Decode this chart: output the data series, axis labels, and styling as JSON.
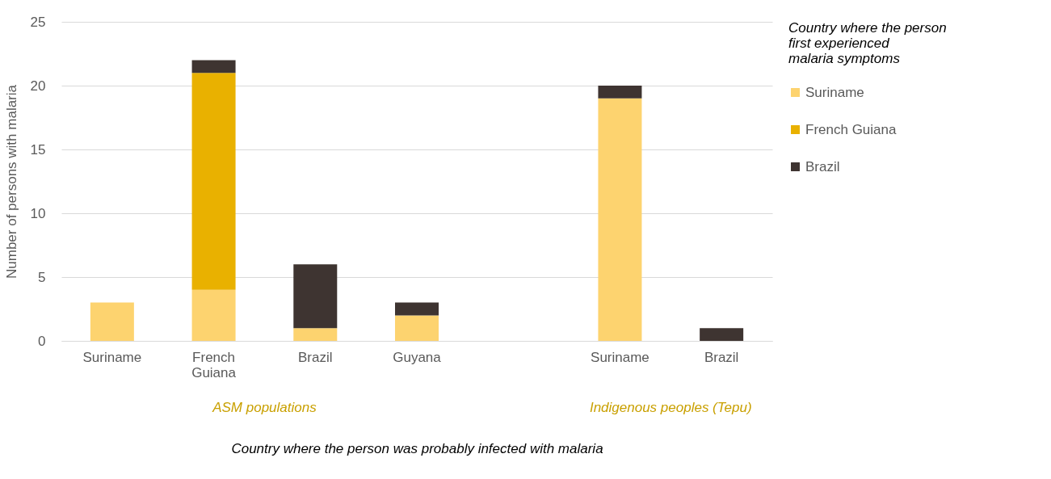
{
  "chart_data": {
    "type": "bar",
    "stacked": true,
    "xlabel": "Country where the person was probably infected with malaria",
    "ylabel": "Number of persons with malaria",
    "legend_title": "Country where the person first experienced malaria symptoms",
    "categories": [
      "Suriname",
      "French Guiana",
      "Brazil",
      "Guyana",
      null,
      "Suriname",
      "Brazil"
    ],
    "series": [
      {
        "name": "Suriname",
        "color": "#fdd36f",
        "values": [
          3,
          4,
          1,
          2,
          null,
          19,
          0
        ]
      },
      {
        "name": "French Guiana",
        "color": "#e9b100",
        "values": [
          0,
          17,
          0,
          0,
          null,
          0,
          0
        ]
      },
      {
        "name": "Brazil",
        "color": "#3e3431",
        "values": [
          0,
          1,
          5,
          1,
          null,
          1,
          1
        ]
      }
    ],
    "ylim": [
      0,
      25
    ],
    "yticks": [
      0,
      5,
      10,
      15,
      20,
      25
    ],
    "grid": "y",
    "legend": "right",
    "annotations": [
      "ASM populations",
      "Indigenous peoples (Tepu)"
    ]
  }
}
